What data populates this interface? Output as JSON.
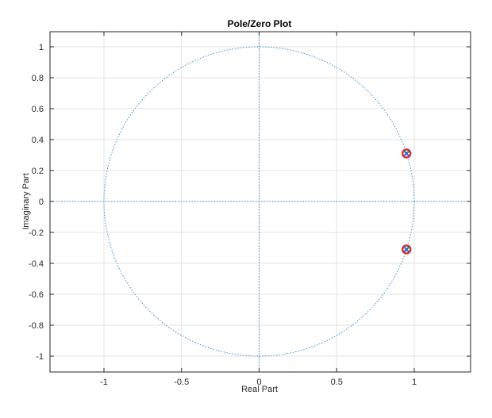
{
  "chart_data": {
    "type": "scatter",
    "title": "Pole/Zero Plot",
    "xlabel": "Real Part",
    "ylabel": "Imaginary Part",
    "xlim": [
      -1.35,
      1.36
    ],
    "ylim": [
      -1.1,
      1.1
    ],
    "xticks": [
      -1,
      -0.5,
      0,
      0.5,
      1
    ],
    "xtick_labels": [
      "-1",
      "-0.5",
      "0",
      "0.5",
      "1"
    ],
    "yticks": [
      -1,
      -0.8,
      -0.6,
      -0.4,
      -0.2,
      0,
      0.2,
      0.4,
      0.6,
      0.8,
      1
    ],
    "ytick_labels": [
      "-1",
      "-0.8",
      "-0.6",
      "-0.4",
      "-0.2",
      "0",
      "0.2",
      "0.4",
      "0.6",
      "0.8",
      "1"
    ],
    "grid": true,
    "unit_circle": true,
    "zeros": [
      {
        "re": 0.95,
        "im": 0.31
      },
      {
        "re": 0.95,
        "im": -0.31
      }
    ],
    "poles": [
      {
        "re": 0.95,
        "im": 0.31
      },
      {
        "re": 0.95,
        "im": -0.31
      }
    ],
    "colors": {
      "zero": "#e0302a",
      "pole": "#1f6fc4",
      "circle": "#3a8fd0",
      "grid": "#e3e3e3"
    }
  }
}
